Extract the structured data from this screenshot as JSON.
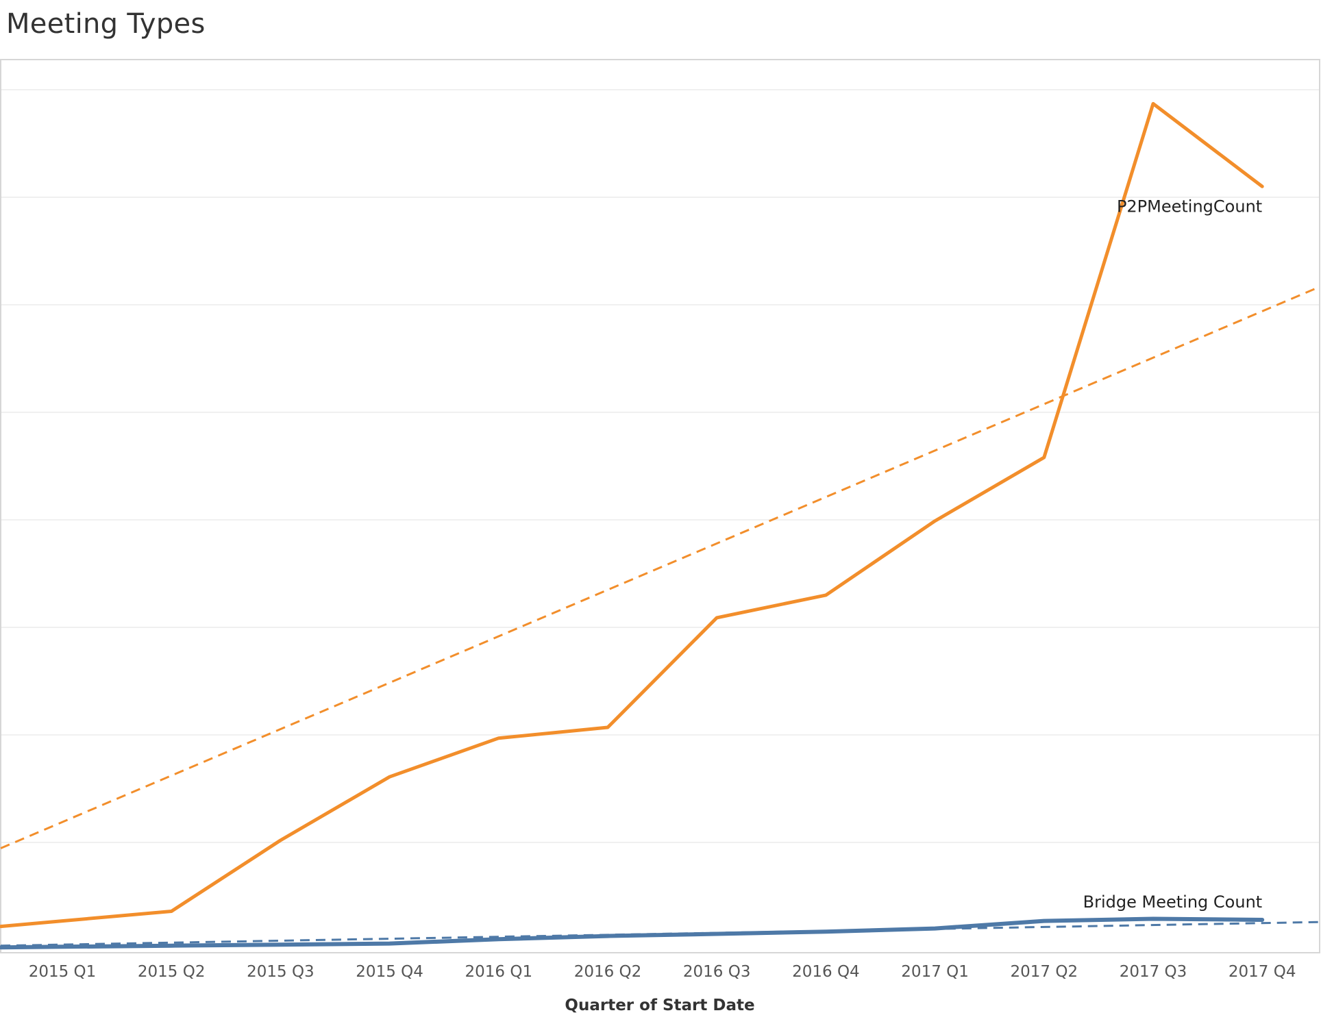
{
  "title": "Meeting Types",
  "chart_data": {
    "type": "line",
    "title": "Meeting Types",
    "xlabel": "Quarter of Start Date",
    "ylabel": "",
    "categories": [
      "2015 Q1",
      "2015 Q2",
      "2015 Q3",
      "2015 Q4",
      "2016 Q1",
      "2016 Q2",
      "2016 Q3",
      "2016 Q4",
      "2017 Q1",
      "2017 Q2",
      "2017 Q3",
      "2017 Q4"
    ],
    "ylim": [
      0,
      8.12
    ],
    "y_gridlines": [
      1,
      2,
      3,
      4,
      5,
      6,
      7,
      8
    ],
    "y_tick_labels_visible": false,
    "grid": true,
    "legend": "none",
    "series": [
      {
        "name": "P2PMeetingCount",
        "color": "#F28E2B",
        "label_anchor": "2017 Q4",
        "values": [
          0.27,
          0.36,
          1.02,
          1.61,
          1.97,
          2.07,
          3.09,
          3.3,
          3.99,
          4.58,
          7.87,
          7.1
        ],
        "trend": {
          "style": "dashed",
          "start": 1.19,
          "slope": 0.4318
        }
      },
      {
        "name": "Bridge Meeting Count",
        "color": "#4E79A7",
        "label_anchor": "2017 Q4",
        "values": [
          0.03,
          0.04,
          0.05,
          0.06,
          0.1,
          0.13,
          0.15,
          0.17,
          0.2,
          0.27,
          0.29,
          0.28
        ],
        "trend": {
          "style": "dashed",
          "start": 0.05,
          "slope": 0.0182
        }
      }
    ]
  }
}
